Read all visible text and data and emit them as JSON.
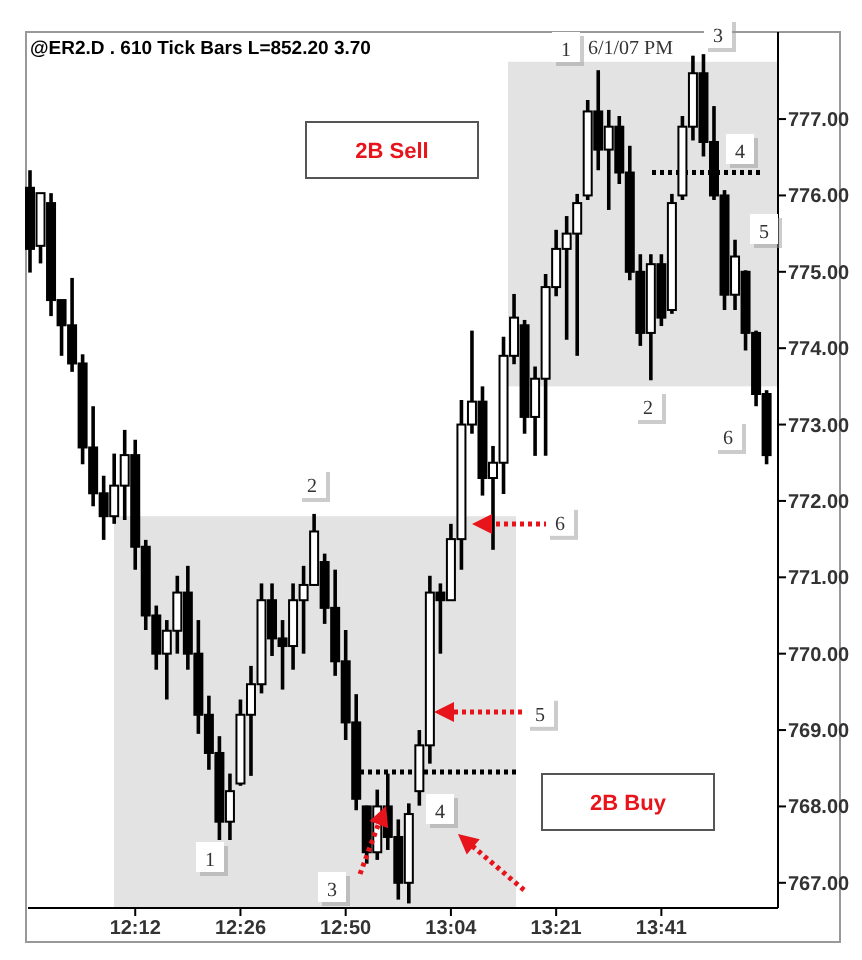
{
  "chart_data": {
    "type": "candlestick",
    "title": "@ER2.D . 610 Tick Bars  L=852.20  3.70",
    "subtitle": "6/1/07 PM",
    "categories": [
      null,
      null,
      null,
      null,
      null,
      null,
      null,
      null,
      null,
      null,
      "12:12",
      null,
      null,
      null,
      null,
      null,
      null,
      null,
      null,
      null,
      "12:26",
      null,
      null,
      null,
      null,
      null,
      null,
      null,
      null,
      null,
      "12:50",
      null,
      null,
      null,
      null,
      null,
      null,
      null,
      null,
      null,
      "13:04",
      null,
      null,
      null,
      null,
      null,
      null,
      null,
      null,
      null,
      "13:21",
      null,
      null,
      null,
      null,
      null,
      null,
      null,
      null,
      null,
      "13:41",
      null,
      null,
      null,
      null,
      null,
      null,
      null,
      null,
      null,
      null
    ],
    "color": "#000000",
    "ohlc": [
      [
        776.1,
        776.33,
        774.99,
        775.3
      ],
      [
        775.34,
        776.03,
        775.11,
        776.03
      ],
      [
        775.9,
        776.03,
        774.42,
        774.63
      ],
      [
        774.63,
        774.63,
        773.9,
        774.3
      ],
      [
        774.3,
        774.92,
        773.69,
        773.8
      ],
      [
        773.8,
        773.92,
        772.48,
        772.7
      ],
      [
        772.7,
        773.24,
        771.93,
        772.1
      ],
      [
        772.1,
        772.33,
        771.49,
        771.8
      ],
      [
        771.8,
        772.62,
        771.7,
        772.2
      ],
      [
        772.2,
        772.93,
        771.75,
        772.6
      ],
      [
        772.6,
        772.8,
        771.1,
        771.4
      ],
      [
        771.4,
        771.49,
        770.31,
        770.5
      ],
      [
        770.5,
        770.63,
        769.79,
        770.0
      ],
      [
        770.0,
        770.44,
        769.4,
        770.3
      ],
      [
        770.3,
        771.02,
        770.0,
        770.8
      ],
      [
        770.8,
        771.15,
        769.79,
        770.0
      ],
      [
        770.0,
        770.44,
        768.95,
        769.2
      ],
      [
        769.2,
        769.45,
        768.48,
        768.7
      ],
      [
        768.7,
        768.92,
        767.56,
        767.8
      ],
      [
        767.8,
        768.43,
        767.56,
        768.2
      ],
      [
        768.3,
        769.4,
        768.27,
        769.2
      ],
      [
        769.2,
        769.84,
        768.4,
        769.6
      ],
      [
        769.6,
        770.92,
        769.48,
        770.7
      ],
      [
        770.7,
        770.92,
        769.97,
        770.2
      ],
      [
        770.2,
        770.44,
        769.53,
        770.1
      ],
      [
        770.1,
        770.92,
        769.79,
        770.7
      ],
      [
        770.7,
        771.15,
        770.0,
        770.9
      ],
      [
        770.9,
        771.83,
        770.89,
        771.6
      ],
      [
        771.2,
        771.31,
        770.39,
        770.6
      ],
      [
        770.6,
        771.1,
        769.71,
        769.9
      ],
      [
        769.9,
        770.31,
        768.87,
        769.1
      ],
      [
        769.1,
        769.47,
        767.95,
        768.1
      ],
      [
        768.0,
        768.01,
        767.25,
        767.4
      ],
      [
        767.4,
        768.22,
        767.3,
        768.0
      ],
      [
        768.0,
        768.43,
        767.43,
        767.6
      ],
      [
        767.6,
        767.83,
        766.78,
        767.0
      ],
      [
        767.0,
        768.04,
        766.73,
        767.9
      ],
      [
        768.2,
        769.0,
        768.01,
        768.8
      ],
      [
        768.8,
        771.02,
        768.56,
        770.8
      ],
      [
        770.8,
        770.92,
        770.0,
        770.7
      ],
      [
        770.7,
        771.7,
        770.7,
        771.5
      ],
      [
        771.5,
        773.32,
        771.1,
        773.0
      ],
      [
        773.0,
        774.23,
        772.88,
        773.3
      ],
      [
        773.3,
        773.5,
        772.07,
        772.3
      ],
      [
        772.3,
        772.72,
        771.36,
        772.5
      ],
      [
        772.5,
        774.15,
        772.09,
        773.9
      ],
      [
        773.9,
        774.71,
        773.79,
        774.4
      ],
      [
        774.3,
        774.37,
        772.88,
        773.1
      ],
      [
        773.1,
        773.76,
        772.59,
        773.6
      ],
      [
        773.6,
        774.97,
        772.59,
        774.8
      ],
      [
        774.8,
        775.55,
        774.68,
        775.3
      ],
      [
        775.3,
        775.73,
        774.11,
        775.5
      ],
      [
        775.5,
        776.02,
        773.9,
        775.9
      ],
      [
        776.0,
        777.25,
        775.94,
        777.1
      ],
      [
        777.1,
        777.64,
        776.33,
        776.6
      ],
      [
        776.6,
        777.12,
        775.81,
        776.9
      ],
      [
        776.9,
        777.04,
        776.15,
        776.3
      ],
      [
        776.3,
        776.65,
        774.89,
        775.0
      ],
      [
        775.0,
        775.23,
        774.03,
        774.2
      ],
      [
        774.2,
        775.23,
        773.58,
        775.1
      ],
      [
        775.1,
        775.23,
        774.29,
        774.4
      ],
      [
        774.5,
        776.02,
        774.45,
        775.9
      ],
      [
        776.0,
        777.04,
        775.94,
        776.9
      ],
      [
        776.9,
        777.83,
        776.72,
        777.6
      ],
      [
        777.6,
        777.85,
        776.51,
        776.7
      ],
      [
        776.7,
        777.17,
        775.94,
        776.0
      ],
      [
        776.0,
        776.07,
        774.5,
        774.7
      ],
      [
        774.7,
        775.42,
        774.5,
        775.2
      ],
      [
        775.0,
        775.02,
        773.97,
        774.2
      ],
      [
        774.2,
        774.23,
        773.24,
        773.4
      ],
      [
        773.4,
        773.45,
        772.48,
        772.6
      ]
    ],
    "ylim": [
      766.67,
      778.14
    ],
    "yticks": [
      {
        "value": 767,
        "label": "767.00"
      },
      {
        "value": 768,
        "label": "768.00"
      },
      {
        "value": 769,
        "label": "769.00"
      },
      {
        "value": 770,
        "label": "770.00"
      },
      {
        "value": 771,
        "label": "771.00"
      },
      {
        "value": 772,
        "label": "772.00"
      },
      {
        "value": 773,
        "label": "773.00"
      },
      {
        "value": 774,
        "label": "774.00"
      },
      {
        "value": 775,
        "label": "775.00"
      },
      {
        "value": 776,
        "label": "776.00"
      },
      {
        "value": 777,
        "label": "777.00"
      }
    ],
    "bands": [
      {
        "axis": "y",
        "from": 766.67,
        "to": 771.8,
        "color": "#e3e3e3"
      },
      {
        "axis": "y",
        "from": 773.5,
        "to": 777.75,
        "color": "#e3e3e3"
      }
    ],
    "ref_lines": [
      {
        "axis": "y",
        "value": 768.45,
        "line_style": "dotted",
        "color": "#000000"
      },
      {
        "axis": "y",
        "value": 776.3,
        "line_style": "dotted",
        "color": "#000000"
      }
    ],
    "annotations": [
      "2B Sell",
      "2B Buy",
      "1",
      "2",
      "3",
      "4",
      {
        "text": "5",
        "y": 769.2
      },
      {
        "text": "6",
        "y": 771.7
      },
      "1",
      "3",
      "4",
      "5",
      "2",
      "6"
    ]
  }
}
